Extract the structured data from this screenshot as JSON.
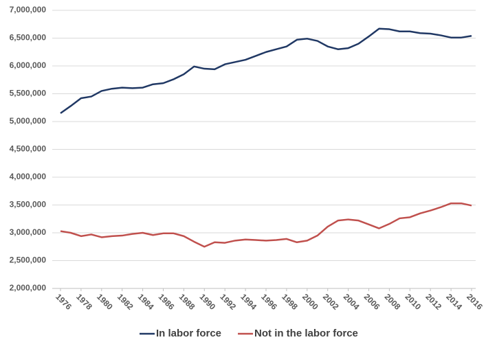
{
  "chart_data": {
    "type": "line",
    "x": [
      1976,
      1977,
      1978,
      1979,
      1980,
      1981,
      1982,
      1983,
      1984,
      1985,
      1986,
      1987,
      1988,
      1989,
      1990,
      1991,
      1992,
      1993,
      1994,
      1995,
      1996,
      1997,
      1998,
      1999,
      2000,
      2001,
      2002,
      2003,
      2004,
      2005,
      2006,
      2007,
      2008,
      2009,
      2010,
      2011,
      2012,
      2013,
      2014,
      2015,
      2016
    ],
    "xlim": [
      1976,
      2016
    ],
    "xticks": [
      1976,
      1978,
      1980,
      1982,
      1984,
      1986,
      1988,
      1990,
      1992,
      1994,
      1996,
      1998,
      2000,
      2002,
      2004,
      2006,
      2008,
      2010,
      2012,
      2014,
      2016
    ],
    "ylim": [
      2000000,
      7000000
    ],
    "yticks": [
      {
        "value": 2000000,
        "label": "2,000,000"
      },
      {
        "value": 2500000,
        "label": "2,500,000"
      },
      {
        "value": 3000000,
        "label": "3,000,000"
      },
      {
        "value": 3500000,
        "label": "3,500,000"
      },
      {
        "value": 4000000,
        "label": "4,000,000"
      },
      {
        "value": 4500000,
        "label": "4,500,000"
      },
      {
        "value": 5000000,
        "label": "5,000,000"
      },
      {
        "value": 5500000,
        "label": "5,500,000"
      },
      {
        "value": 6000000,
        "label": "6,000,000"
      },
      {
        "value": 6500000,
        "label": "6,500,000"
      },
      {
        "value": 7000000,
        "label": "7,000,000"
      }
    ],
    "grid": true,
    "legend": "bottom",
    "series": [
      {
        "name": "In labor force",
        "color": "#203864",
        "values": [
          5150000,
          5280000,
          5420000,
          5450000,
          5550000,
          5590000,
          5610000,
          5600000,
          5610000,
          5670000,
          5690000,
          5760000,
          5850000,
          5990000,
          5950000,
          5940000,
          6030000,
          6070000,
          6110000,
          6180000,
          6250000,
          6300000,
          6350000,
          6470000,
          6490000,
          6450000,
          6350000,
          6300000,
          6320000,
          6400000,
          6530000,
          6670000,
          6660000,
          6620000,
          6620000,
          6590000,
          6580000,
          6550000,
          6510000,
          6510000,
          6540000
        ]
      },
      {
        "name": "Not in the labor force",
        "color": "#c0504d",
        "values": [
          3030000,
          3000000,
          2940000,
          2970000,
          2920000,
          2940000,
          2950000,
          2980000,
          3000000,
          2960000,
          2990000,
          2990000,
          2940000,
          2840000,
          2750000,
          2830000,
          2820000,
          2860000,
          2880000,
          2870000,
          2860000,
          2870000,
          2890000,
          2830000,
          2860000,
          2950000,
          3110000,
          3220000,
          3240000,
          3220000,
          3150000,
          3080000,
          3160000,
          3260000,
          3280000,
          3350000,
          3400000,
          3460000,
          3530000,
          3530000,
          3490000
        ]
      }
    ]
  }
}
